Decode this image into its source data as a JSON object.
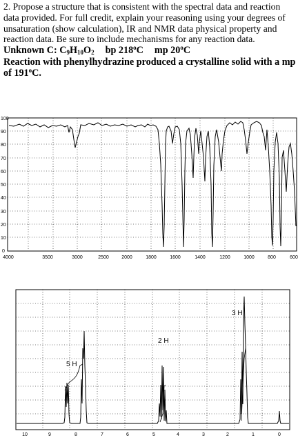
{
  "problem": {
    "text": "2. Propose a structure that is consistent with the spectral data and reaction data provided. For full credit, explain your reasoning using your degrees of unsaturation (show calculation), IR and NMR data physical property and reaction data. Be sure to include mechanisms for any reaction data.",
    "unknown_label": "Unknown C:",
    "formula": {
      "c": "C",
      "c_n": "9",
      "h": "H",
      "h_n": "10",
      "o": "O",
      "o_n": "2"
    },
    "bp": "bp 218",
    "bp_unit": "C",
    "mp": "mp 20",
    "mp_unit": "C",
    "degree": "o",
    "reaction_text": "Reaction with phenylhydrazine produced a crystalline solid with a mp of 191",
    "reaction_unit": "C."
  },
  "ir": {
    "y_ticks": [
      "100",
      "90",
      "80",
      "70",
      "60",
      "50",
      "40",
      "30",
      "20",
      "10",
      "0"
    ],
    "x_ticks": [
      "4000",
      "3500",
      "3000",
      "2500",
      "2000",
      "1800",
      "1600",
      "1400",
      "1200",
      "1000",
      "800",
      "600"
    ]
  },
  "nmr": {
    "x_ticks": [
      "10",
      "9",
      "8",
      "7",
      "6",
      "5",
      "4",
      "3",
      "2",
      "1",
      "0"
    ],
    "peak_labels": [
      "5 H",
      "2 H",
      "3 H"
    ]
  }
}
